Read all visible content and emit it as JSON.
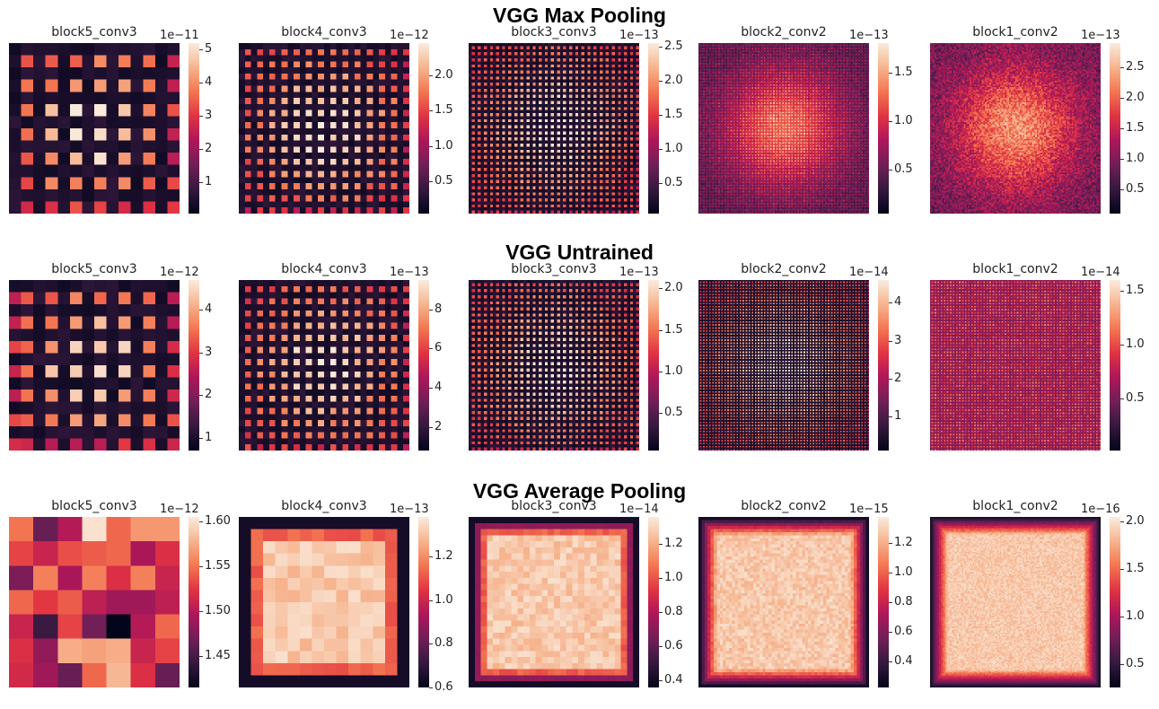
{
  "figure": {
    "row_titles": [
      "VGG Max Pooling",
      "VGG Untrained",
      "VGG Average Pooling"
    ]
  },
  "colormap": {
    "name": "rocket",
    "stops": [
      "#03051a",
      "#35193e",
      "#701f57",
      "#ad1759",
      "#e13342",
      "#f37651",
      "#f6b48e",
      "#faebdd"
    ]
  },
  "chart_data": [
    {
      "type": "heatmap",
      "row": 0,
      "title": "block5_conv3",
      "exponent": "1e−11",
      "vmin": 0.05,
      "vmax": 5.2,
      "grid": 14,
      "pattern": "spots",
      "cell_pitch": 2,
      "colorbar_ticks": [
        {
          "value": 1,
          "label": "1"
        },
        {
          "value": 2,
          "label": "2"
        },
        {
          "value": 3,
          "label": "3"
        },
        {
          "value": 4,
          "label": "4"
        },
        {
          "value": 5,
          "label": "5"
        }
      ]
    },
    {
      "type": "heatmap",
      "row": 0,
      "title": "block4_conv3",
      "exponent": "1e−12",
      "vmin": 0.05,
      "vmax": 2.45,
      "grid": 28,
      "pattern": "spots",
      "cell_pitch": 2,
      "colorbar_ticks": [
        {
          "value": 0.5,
          "label": "0.5"
        },
        {
          "value": 1.0,
          "label": "1.0"
        },
        {
          "value": 1.5,
          "label": "1.5"
        },
        {
          "value": 2.0,
          "label": "2.0"
        }
      ]
    },
    {
      "type": "heatmap",
      "row": 0,
      "title": "block3_conv3",
      "exponent": "1e−13",
      "vmin": 0.05,
      "vmax": 2.55,
      "grid": 56,
      "pattern": "spots",
      "cell_pitch": 2,
      "colorbar_ticks": [
        {
          "value": 0.5,
          "label": "0.5"
        },
        {
          "value": 1.0,
          "label": "1.0"
        },
        {
          "value": 1.5,
          "label": "1.5"
        },
        {
          "value": 2.0,
          "label": "2.0"
        },
        {
          "value": 2.5,
          "label": "2.5"
        }
      ]
    },
    {
      "type": "heatmap",
      "row": 0,
      "title": "block2_conv2",
      "exponent": "1e−13",
      "vmin": 0.05,
      "vmax": 1.8,
      "grid": 112,
      "pattern": "blob",
      "cell_pitch": 2,
      "colorbar_ticks": [
        {
          "value": 0.5,
          "label": "0.5"
        },
        {
          "value": 1.0,
          "label": "1.0"
        },
        {
          "value": 1.5,
          "label": "1.5"
        }
      ]
    },
    {
      "type": "heatmap",
      "row": 0,
      "title": "block1_conv2",
      "exponent": "1e−13",
      "vmin": 0.1,
      "vmax": 2.9,
      "grid": 112,
      "pattern": "noise-blob",
      "cell_pitch": 1,
      "colorbar_ticks": [
        {
          "value": 0.5,
          "label": "0.5"
        },
        {
          "value": 1.0,
          "label": "1.0"
        },
        {
          "value": 1.5,
          "label": "1.5"
        },
        {
          "value": 2.0,
          "label": "2.0"
        },
        {
          "value": 2.5,
          "label": "2.5"
        }
      ]
    },
    {
      "type": "heatmap",
      "row": 1,
      "title": "block5_conv3",
      "exponent": "1e−12",
      "vmin": 0.7,
      "vmax": 4.7,
      "grid": 14,
      "pattern": "spots",
      "cell_pitch": 2,
      "colorbar_ticks": [
        {
          "value": 1,
          "label": "1"
        },
        {
          "value": 2,
          "label": "2"
        },
        {
          "value": 3,
          "label": "3"
        },
        {
          "value": 4,
          "label": "4"
        }
      ]
    },
    {
      "type": "heatmap",
      "row": 1,
      "title": "block4_conv3",
      "exponent": "1e−13",
      "vmin": 0.8,
      "vmax": 9.5,
      "grid": 28,
      "pattern": "spots",
      "cell_pitch": 2,
      "colorbar_ticks": [
        {
          "value": 2,
          "label": "2"
        },
        {
          "value": 4,
          "label": "4"
        },
        {
          "value": 6,
          "label": "6"
        },
        {
          "value": 8,
          "label": "8"
        }
      ]
    },
    {
      "type": "heatmap",
      "row": 1,
      "title": "block3_conv3",
      "exponent": "1e−13",
      "vmin": 0.05,
      "vmax": 2.1,
      "grid": 56,
      "pattern": "spots",
      "cell_pitch": 2,
      "colorbar_ticks": [
        {
          "value": 0.5,
          "label": "0.5"
        },
        {
          "value": 1.0,
          "label": "1.0"
        },
        {
          "value": 1.5,
          "label": "1.5"
        },
        {
          "value": 2.0,
          "label": "2.0"
        }
      ]
    },
    {
      "type": "heatmap",
      "row": 1,
      "title": "block2_conv2",
      "exponent": "1e−14",
      "vmin": 0.1,
      "vmax": 4.6,
      "grid": 112,
      "pattern": "spots",
      "cell_pitch": 2,
      "colorbar_ticks": [
        {
          "value": 1,
          "label": "1"
        },
        {
          "value": 2,
          "label": "2"
        },
        {
          "value": 3,
          "label": "3"
        },
        {
          "value": 4,
          "label": "4"
        }
      ]
    },
    {
      "type": "heatmap",
      "row": 1,
      "title": "block1_conv2",
      "exponent": "1e−14",
      "vmin": 0.02,
      "vmax": 1.6,
      "grid": 112,
      "pattern": "uniform-fine",
      "cell_pitch": 1,
      "colorbar_ticks": [
        {
          "value": 0.5,
          "label": "0.5"
        },
        {
          "value": 1.0,
          "label": "1.0"
        },
        {
          "value": 1.5,
          "label": "1.5"
        }
      ]
    },
    {
      "type": "heatmap",
      "row": 2,
      "title": "block5_conv3",
      "exponent": "1e−12",
      "vmin": 1.415,
      "vmax": 1.605,
      "grid": 7,
      "pattern": "explicit",
      "cell_pitch": 1,
      "values": [
        [
          1.55,
          1.465,
          1.5,
          1.6,
          1.545,
          1.565,
          1.565
        ],
        [
          1.53,
          1.51,
          1.535,
          1.54,
          1.545,
          1.495,
          1.52
        ],
        [
          1.475,
          1.555,
          1.495,
          1.555,
          1.52,
          1.555,
          1.51
        ],
        [
          1.545,
          1.525,
          1.54,
          1.505,
          1.49,
          1.49,
          1.505
        ],
        [
          1.51,
          1.445,
          1.53,
          1.47,
          1.415,
          1.5,
          1.545
        ],
        [
          1.52,
          1.485,
          1.575,
          1.57,
          1.575,
          1.51,
          1.53
        ],
        [
          1.515,
          1.49,
          1.465,
          1.545,
          1.58,
          1.52,
          1.465
        ]
      ],
      "colorbar_ticks": [
        {
          "value": 1.45,
          "label": "1.45"
        },
        {
          "value": 1.5,
          "label": "1.50"
        },
        {
          "value": 1.55,
          "label": "1.55"
        },
        {
          "value": 1.6,
          "label": "1.60"
        }
      ]
    },
    {
      "type": "heatmap",
      "row": 2,
      "title": "block4_conv3",
      "exponent": "1e−13",
      "vmin": 0.6,
      "vmax": 1.38,
      "grid": 14,
      "pattern": "box",
      "cell_pitch": 1,
      "colorbar_ticks": [
        {
          "value": 0.6,
          "label": "0.6"
        },
        {
          "value": 0.8,
          "label": "0.8"
        },
        {
          "value": 1.0,
          "label": "1.0"
        },
        {
          "value": 1.2,
          "label": "1.2"
        }
      ]
    },
    {
      "type": "heatmap",
      "row": 2,
      "title": "block3_conv3",
      "exponent": "1e−14",
      "vmin": 0.36,
      "vmax": 1.36,
      "grid": 28,
      "pattern": "box",
      "cell_pitch": 1,
      "colorbar_ticks": [
        {
          "value": 0.4,
          "label": "0.4"
        },
        {
          "value": 0.6,
          "label": "0.6"
        },
        {
          "value": 0.8,
          "label": "0.8"
        },
        {
          "value": 1.0,
          "label": "1.0"
        },
        {
          "value": 1.2,
          "label": "1.2"
        }
      ]
    },
    {
      "type": "heatmap",
      "row": 2,
      "title": "block2_conv2",
      "exponent": "1e−15",
      "vmin": 0.22,
      "vmax": 1.38,
      "grid": 56,
      "pattern": "box",
      "cell_pitch": 1,
      "colorbar_ticks": [
        {
          "value": 0.4,
          "label": "0.4"
        },
        {
          "value": 0.6,
          "label": "0.6"
        },
        {
          "value": 0.8,
          "label": "0.8"
        },
        {
          "value": 1.0,
          "label": "1.0"
        },
        {
          "value": 1.2,
          "label": "1.2"
        }
      ]
    },
    {
      "type": "heatmap",
      "row": 2,
      "title": "block1_conv2",
      "exponent": "1e−16",
      "vmin": 0.25,
      "vmax": 2.05,
      "grid": 112,
      "pattern": "box",
      "cell_pitch": 1,
      "colorbar_ticks": [
        {
          "value": 0.5,
          "label": "0.5"
        },
        {
          "value": 1.0,
          "label": "1.0"
        },
        {
          "value": 1.5,
          "label": "1.5"
        },
        {
          "value": 2.0,
          "label": "2.0"
        }
      ]
    }
  ]
}
